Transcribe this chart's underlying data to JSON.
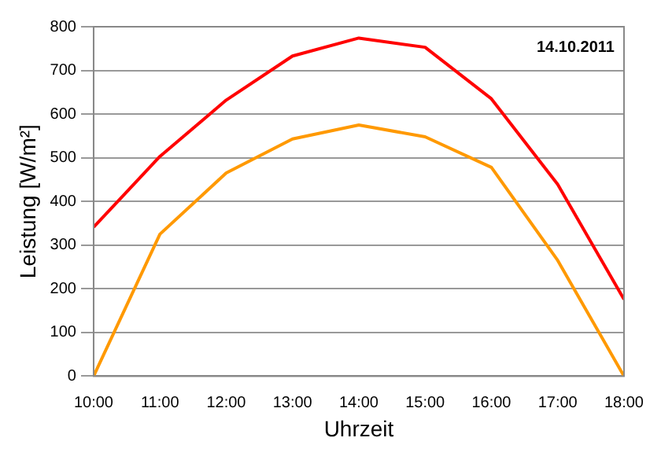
{
  "chart_data": {
    "type": "line",
    "xlabel": "Uhrzeit",
    "ylabel": "Leistung [W/m²]",
    "annotations": [
      "14.10.2011"
    ],
    "x": [
      10,
      11,
      12,
      13,
      14,
      15,
      16,
      17,
      18
    ],
    "series": [
      {
        "color": "#ff0000",
        "values": [
          341,
          503,
          632,
          733,
          774,
          753,
          635,
          439,
          176
        ]
      },
      {
        "color": "#ff9900",
        "values": [
          0,
          325,
          465,
          543,
          575,
          548,
          478,
          265,
          0
        ]
      }
    ],
    "xlim": [
      10,
      18
    ],
    "xticks": [
      {
        "value": 10,
        "label": "10:00"
      },
      {
        "value": 11,
        "label": "11:00"
      },
      {
        "value": 12,
        "label": "12:00"
      },
      {
        "value": 13,
        "label": "13:00"
      },
      {
        "value": 14,
        "label": "14:00"
      },
      {
        "value": 15,
        "label": "15:00"
      },
      {
        "value": 16,
        "label": "16:00"
      },
      {
        "value": 17,
        "label": "17:00"
      },
      {
        "value": 18,
        "label": "18:00"
      }
    ],
    "ylim": [
      0,
      800
    ],
    "yticks": [
      0,
      100,
      200,
      300,
      400,
      500,
      600,
      700,
      800
    ],
    "grid": "y"
  }
}
